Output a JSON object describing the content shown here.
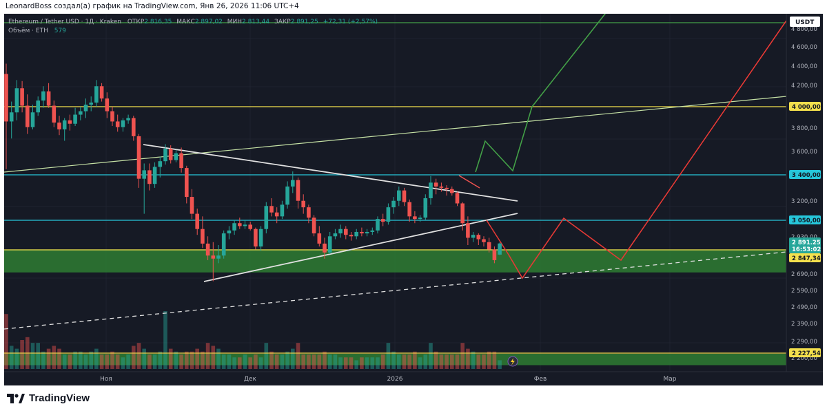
{
  "header": {
    "title": "LeonardBoss создал(а) график на TradingView.com, Янв 26, 2026 11:06 UTC+4"
  },
  "legend": {
    "symbol": "Ethereum / Tether USD · 1Д · Kraken",
    "open_label": "ОТКР",
    "open": "2 816,35",
    "high_label": "МАКС",
    "high": "2 897,02",
    "low_label": "МИН",
    "low": "2 813,44",
    "close_label": "ЗАКР",
    "close": "2 891,25",
    "change": "+72,31 (+2,57%)",
    "volume_label": "Объём · ETH",
    "volume": "579"
  },
  "footer": {
    "brand": "TradingView"
  },
  "chart_data": {
    "type": "candlestick",
    "currency_label": "USDT",
    "x_tick_labels": [
      "Ноя",
      "Дек",
      "2026",
      "Фев",
      "Мар"
    ],
    "y_tick_labels": [
      "4 800,00",
      "4 600,00",
      "4 400,00",
      "4 200,00",
      "3 800,00",
      "3 600,00",
      "3 400,00",
      "3 200,00",
      "2 930,00",
      "2 690,00",
      "2 590,00",
      "2 490,00",
      "2 390,00",
      "2 290,00",
      "2 200,00"
    ],
    "price_badges": [
      {
        "value": "4 000,00",
        "color": "#f4e04d"
      },
      {
        "value": "3 400,00",
        "color": "#26c6da"
      },
      {
        "value": "3 050,00",
        "color": "#26c6da"
      },
      {
        "value": "2 891,25",
        "color": "#26a69a"
      },
      {
        "value": "16:53:02",
        "color": "#26a69a"
      },
      {
        "value": "2 847,34",
        "color": "#f4e04d"
      },
      {
        "value": "2 227,54",
        "color": "#f4e04d"
      }
    ],
    "horizontal_levels": [
      {
        "price": 4000,
        "color": "#f4e04d"
      },
      {
        "price": 3400,
        "color": "#26c6da"
      },
      {
        "price": 3050,
        "color": "#26c6da"
      },
      {
        "price": 2847,
        "color": "#f4e04d"
      },
      {
        "price": 2227,
        "color": "#f4e04d"
      },
      {
        "price": 4820,
        "color": "#43a047"
      }
    ],
    "zones": [
      {
        "from": 2700,
        "to": 2850,
        "color": "#2e7d32"
      },
      {
        "from": 2138,
        "to": 2222,
        "color": "#2e7d32"
      }
    ],
    "volume_label": "579",
    "candles": [
      [
        4320,
        4420,
        3450,
        3870
      ],
      [
        3870,
        4050,
        3720,
        3950
      ],
      [
        3950,
        4260,
        3880,
        4180
      ],
      [
        4180,
        4250,
        3950,
        4010
      ],
      [
        4010,
        4120,
        3760,
        3820
      ],
      [
        3820,
        4020,
        3800,
        3950
      ],
      [
        3950,
        4100,
        3920,
        4060
      ],
      [
        4060,
        4200,
        3990,
        4150
      ],
      [
        4150,
        4230,
        3990,
        4010
      ],
      [
        4010,
        4060,
        3820,
        3860
      ],
      [
        3860,
        3920,
        3750,
        3800
      ],
      [
        3800,
        3900,
        3700,
        3880
      ],
      [
        3880,
        3930,
        3790,
        3850
      ],
      [
        3850,
        3990,
        3830,
        3930
      ],
      [
        3930,
        4000,
        3880,
        3960
      ],
      [
        3960,
        4080,
        3900,
        4020
      ],
      [
        4020,
        4100,
        3960,
        4040
      ],
      [
        4040,
        4260,
        4000,
        4200
      ],
      [
        4200,
        4230,
        4050,
        4080
      ],
      [
        4080,
        4140,
        3900,
        3960
      ],
      [
        3960,
        4000,
        3830,
        3870
      ],
      [
        3870,
        3930,
        3780,
        3820
      ],
      [
        3820,
        3900,
        3780,
        3880
      ],
      [
        3880,
        3930,
        3850,
        3900
      ],
      [
        3900,
        3920,
        3700,
        3740
      ],
      [
        3740,
        3760,
        3300,
        3370
      ],
      [
        3370,
        3500,
        3100,
        3440
      ],
      [
        3440,
        3500,
        3280,
        3330
      ],
      [
        3330,
        3510,
        3300,
        3470
      ],
      [
        3470,
        3560,
        3380,
        3520
      ],
      [
        3520,
        3670,
        3490,
        3630
      ],
      [
        3630,
        3660,
        3500,
        3530
      ],
      [
        3530,
        3620,
        3510,
        3590
      ],
      [
        3590,
        3640,
        3420,
        3460
      ],
      [
        3460,
        3480,
        3180,
        3230
      ],
      [
        3230,
        3290,
        3060,
        3100
      ],
      [
        3100,
        3140,
        2950,
        2990
      ],
      [
        2990,
        3080,
        2860,
        2890
      ],
      [
        2890,
        2940,
        2780,
        2810
      ],
      [
        2810,
        2900,
        2640,
        2790
      ],
      [
        2790,
        2880,
        2760,
        2810
      ],
      [
        2810,
        2980,
        2790,
        2960
      ],
      [
        2960,
        3010,
        2920,
        2980
      ],
      [
        2980,
        3050,
        2950,
        3030
      ],
      [
        3030,
        3070,
        2990,
        3010
      ],
      [
        3010,
        3050,
        2990,
        3020
      ],
      [
        3020,
        3040,
        2980,
        2990
      ],
      [
        2990,
        3000,
        2850,
        2870
      ],
      [
        2870,
        3010,
        2840,
        2990
      ],
      [
        2990,
        3190,
        2960,
        3160
      ],
      [
        3160,
        3220,
        3080,
        3110
      ],
      [
        3110,
        3150,
        3030,
        3080
      ],
      [
        3080,
        3200,
        3060,
        3170
      ],
      [
        3170,
        3350,
        3140,
        3310
      ],
      [
        3310,
        3430,
        3260,
        3360
      ],
      [
        3360,
        3380,
        3140,
        3200
      ],
      [
        3200,
        3250,
        3100,
        3150
      ],
      [
        3150,
        3170,
        3030,
        3070
      ],
      [
        3070,
        3090,
        2940,
        2960
      ],
      [
        2960,
        3010,
        2870,
        2890
      ],
      [
        2890,
        2930,
        2790,
        2830
      ],
      [
        2830,
        2970,
        2820,
        2940
      ],
      [
        2940,
        2990,
        2920,
        2960
      ],
      [
        2960,
        3020,
        2930,
        2990
      ],
      [
        2990,
        3010,
        2920,
        2950
      ],
      [
        2950,
        2970,
        2910,
        2940
      ],
      [
        2940,
        2990,
        2920,
        2970
      ],
      [
        2970,
        3000,
        2940,
        2960
      ],
      [
        2960,
        2990,
        2940,
        2970
      ],
      [
        2970,
        3000,
        2950,
        2980
      ],
      [
        2980,
        3080,
        2960,
        3060
      ],
      [
        3060,
        3100,
        3010,
        3040
      ],
      [
        3040,
        3180,
        3020,
        3150
      ],
      [
        3150,
        3230,
        3100,
        3200
      ],
      [
        3200,
        3310,
        3160,
        3280
      ],
      [
        3280,
        3300,
        3160,
        3190
      ],
      [
        3190,
        3210,
        3040,
        3080
      ],
      [
        3080,
        3120,
        3030,
        3060
      ],
      [
        3060,
        3090,
        3040,
        3070
      ],
      [
        3070,
        3250,
        3050,
        3220
      ],
      [
        3220,
        3390,
        3170,
        3340
      ],
      [
        3340,
        3370,
        3250,
        3310
      ],
      [
        3310,
        3340,
        3270,
        3300
      ],
      [
        3300,
        3320,
        3240,
        3290
      ],
      [
        3290,
        3310,
        3240,
        3260
      ],
      [
        3260,
        3270,
        3160,
        3180
      ],
      [
        3180,
        3190,
        2980,
        3030
      ],
      [
        3030,
        3080,
        2880,
        2930
      ],
      [
        2930,
        2970,
        2900,
        2950
      ],
      [
        2950,
        2960,
        2880,
        2920
      ],
      [
        2920,
        2940,
        2870,
        2900
      ],
      [
        2900,
        2930,
        2830,
        2850
      ],
      [
        2850,
        2870,
        2760,
        2780
      ],
      [
        2816,
        2897,
        2813,
        2891
      ]
    ],
    "volumes": [
      1.9,
      0.8,
      0.7,
      1.0,
      1.1,
      0.9,
      0.9,
      0.6,
      0.7,
      0.8,
      0.7,
      0.5,
      0.5,
      0.6,
      0.6,
      0.5,
      0.6,
      0.7,
      0.5,
      0.5,
      0.6,
      0.5,
      0.4,
      0.5,
      0.8,
      0.9,
      0.7,
      0.5,
      0.5,
      0.6,
      2.0,
      0.7,
      0.6,
      0.5,
      0.6,
      0.6,
      0.7,
      0.6,
      0.9,
      0.8,
      0.7,
      0.5,
      0.5,
      0.4,
      0.4,
      0.5,
      0.4,
      0.5,
      0.4,
      0.9,
      0.6,
      0.5,
      0.5,
      0.6,
      0.7,
      0.9,
      0.5,
      0.5,
      0.5,
      0.5,
      0.6,
      0.5,
      0.5,
      0.4,
      0.4,
      0.4,
      0.3,
      0.4,
      0.4,
      0.4,
      0.4,
      0.5,
      0.9,
      0.6,
      0.5,
      0.5,
      0.5,
      0.6,
      0.4,
      0.5,
      0.9,
      0.6,
      0.5,
      0.5,
      0.5,
      0.5,
      0.9,
      0.7,
      0.6,
      0.5,
      0.5,
      0.6,
      0.6,
      0.3
    ]
  }
}
